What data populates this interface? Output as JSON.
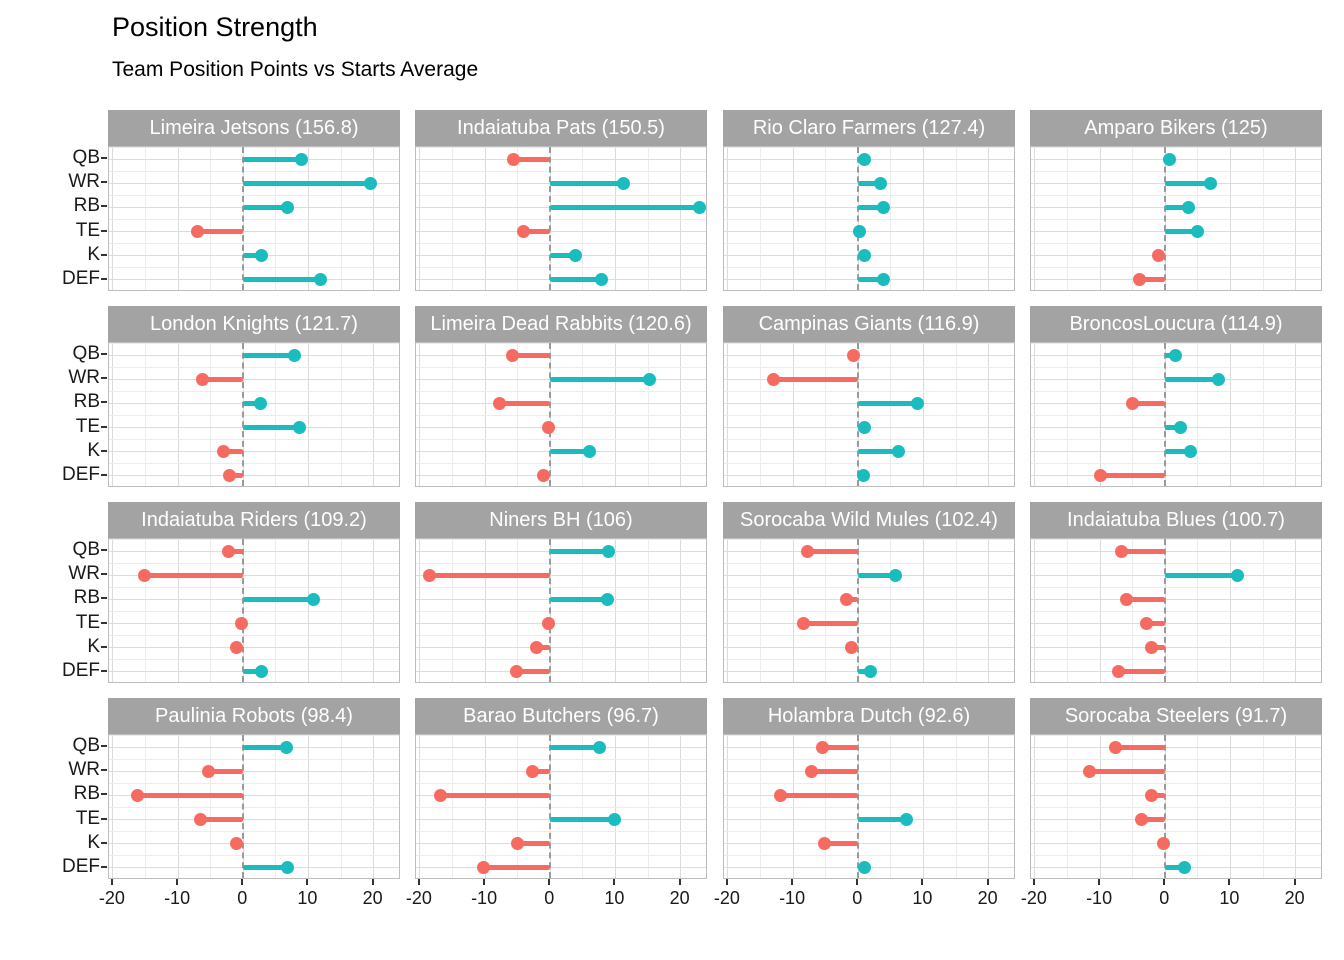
{
  "chart_data": {
    "type": "bar",
    "subtype": "lollipop-facets",
    "title": "Position Strength",
    "subtitle": "Team Position Points vs Starts Average",
    "categories": [
      "QB",
      "WR",
      "RB",
      "TE",
      "K",
      "DEF"
    ],
    "xlabel": "",
    "ylabel": "",
    "x_ticks": [
      -20,
      -10,
      0,
      10,
      20
    ],
    "x_minor_ticks": [
      -15,
      -5,
      5,
      15
    ],
    "x_range": [
      -20.6,
      24.2
    ],
    "grid": "on",
    "legend": "none",
    "colors": {
      "positive": "#1ABCBE",
      "negative": "#F56B61",
      "strip_bg": "#A3A3A3",
      "strip_text": "#FFFFFF",
      "zero_line": "#9A9A9A"
    },
    "facets": [
      {
        "label": "Limeira Jetsons (156.8)",
        "values": [
          8.9,
          19.5,
          6.8,
          -7.0,
          2.8,
          11.8
        ]
      },
      {
        "label": "Indaiatuba Pats (150.5)",
        "values": [
          -5.6,
          11.3,
          22.9,
          -4.1,
          3.8,
          7.9
        ]
      },
      {
        "label": "Rio Claro Farmers (127.4)",
        "values": [
          1.0,
          3.4,
          3.8,
          0.2,
          0.9,
          3.8
        ]
      },
      {
        "label": "Amparo Bikers (125)",
        "values": [
          0.6,
          7.0,
          3.5,
          5.0,
          -1.1,
          -4.0
        ]
      },
      {
        "label": "London Knights (121.7)",
        "values": [
          7.9,
          -6.3,
          2.6,
          8.6,
          -3.1,
          -2.1
        ]
      },
      {
        "label": "Limeira Dead Rabbits (120.6)",
        "values": [
          -5.8,
          15.2,
          -7.8,
          -0.3,
          6.0,
          -1.0
        ]
      },
      {
        "label": "Campinas Giants (116.9)",
        "values": [
          -0.7,
          -13.0,
          9.1,
          0.9,
          6.1,
          0.8
        ]
      },
      {
        "label": "BroncosLoucura (114.9)",
        "values": [
          1.5,
          8.2,
          -5.1,
          2.4,
          3.8,
          -10.0
        ]
      },
      {
        "label": "Indaiatuba Riders (109.2)",
        "values": [
          -2.3,
          -15.2,
          10.8,
          -0.2,
          -1.1,
          2.8
        ]
      },
      {
        "label": "Niners BH (106)",
        "values": [
          8.9,
          -18.6,
          8.8,
          -0.3,
          -2.1,
          -5.2
        ]
      },
      {
        "label": "Sorocaba Wild Mules (102.4)",
        "values": [
          -7.8,
          5.7,
          -1.8,
          -8.4,
          -1.0,
          1.8
        ]
      },
      {
        "label": "Indaiatuba Blues (100.7)",
        "values": [
          -6.7,
          11.1,
          -5.9,
          -2.9,
          -2.1,
          -7.2
        ]
      },
      {
        "label": "Paulinia Robots (98.4)",
        "values": [
          6.6,
          -5.4,
          -16.2,
          -6.6,
          -1.1,
          6.8
        ]
      },
      {
        "label": "Barao Butchers (96.7)",
        "values": [
          7.5,
          -2.8,
          -16.8,
          9.9,
          -5.1,
          -10.2
        ]
      },
      {
        "label": "Holambra Dutch (92.6)",
        "values": [
          -5.5,
          -7.1,
          -11.9,
          7.4,
          -5.2,
          0.9
        ]
      },
      {
        "label": "Sorocaba Steelers (91.7)",
        "values": [
          -7.6,
          -11.6,
          -2.1,
          -3.7,
          -0.2,
          2.9
        ]
      }
    ]
  }
}
